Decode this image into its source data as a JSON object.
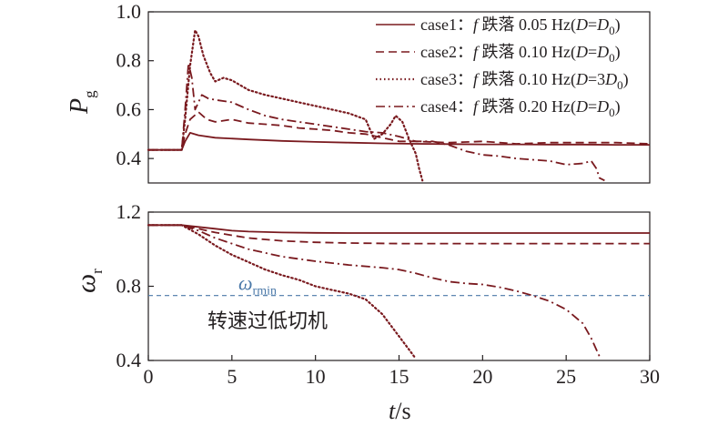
{
  "chart_data": [
    {
      "type": "line",
      "ylabel": "P",
      "ylabel_sub": "g",
      "ylim": [
        0.3,
        1.0
      ],
      "xlim": [
        0,
        30
      ],
      "yticks": [
        "0.4",
        "0.6",
        "0.8",
        "1.0"
      ],
      "legend_position": "top-right",
      "legend": [
        {
          "id": "case1",
          "text_pre": "case1：",
          "f": "f",
          "text_mid": " 跌落 0.05 Hz(",
          "D": "D",
          "eq": "=",
          "D0": "D",
          "D0sub": "0",
          "close": ")"
        },
        {
          "id": "case2",
          "text_pre": "case2：",
          "f": "f",
          "text_mid": " 跌落 0.10 Hz(",
          "D": "D",
          "eq": "=",
          "D0": "D",
          "D0sub": "0",
          "close": ")"
        },
        {
          "id": "case3",
          "text_pre": "case3：",
          "f": "f",
          "text_mid": " 跌落 0.10 Hz(",
          "D": "D",
          "eq": "=3",
          "D0": "D",
          "D0sub": "0",
          "close": ")"
        },
        {
          "id": "case4",
          "text_pre": "case4：",
          "f": "f",
          "text_mid": " 跌落 0.20 Hz(",
          "D": "D",
          "eq": "=",
          "D0": "D",
          "D0sub": "0",
          "close": ")"
        }
      ],
      "series": [
        {
          "id": "case1",
          "style": "solid",
          "color": "#7a1a1f",
          "x": [
            0,
            2,
            2.2,
            2.5,
            3,
            4,
            6,
            8,
            10,
            12,
            14,
            16,
            18,
            20,
            22,
            24,
            26,
            28,
            30
          ],
          "y": [
            0.435,
            0.435,
            0.47,
            0.505,
            0.495,
            0.485,
            0.478,
            0.472,
            0.468,
            0.465,
            0.462,
            0.46,
            0.459,
            0.458,
            0.458,
            0.457,
            0.457,
            0.456,
            0.456
          ]
        },
        {
          "id": "case2",
          "style": "dashed",
          "color": "#7a1a1f",
          "x": [
            0,
            2,
            2.2,
            2.5,
            3,
            3.5,
            4,
            5,
            6,
            7,
            8,
            9,
            10,
            11,
            12,
            13,
            14,
            15,
            16,
            18,
            20,
            22,
            24,
            26,
            28,
            30
          ],
          "y": [
            0.435,
            0.435,
            0.5,
            0.56,
            0.59,
            0.56,
            0.55,
            0.56,
            0.545,
            0.54,
            0.535,
            0.525,
            0.52,
            0.515,
            0.505,
            0.5,
            0.485,
            0.47,
            0.47,
            0.465,
            0.47,
            0.46,
            0.465,
            0.465,
            0.465,
            0.46
          ]
        },
        {
          "id": "case3",
          "style": "dotted",
          "color": "#7a1a1f",
          "x": [
            0,
            2,
            2.2,
            2.5,
            2.8,
            3.0,
            3.3,
            3.7,
            4,
            4.5,
            5,
            5.5,
            6,
            7,
            8,
            9,
            10,
            11,
            12,
            13,
            13.5,
            14,
            14.5,
            14.8,
            15.2,
            15.6,
            16,
            16.2,
            16.4
          ],
          "y": [
            0.435,
            0.435,
            0.56,
            0.78,
            0.925,
            0.9,
            0.82,
            0.75,
            0.715,
            0.73,
            0.72,
            0.7,
            0.68,
            0.66,
            0.645,
            0.63,
            0.615,
            0.6,
            0.585,
            0.56,
            0.48,
            0.5,
            0.54,
            0.575,
            0.55,
            0.48,
            0.42,
            0.36,
            0.31
          ]
        },
        {
          "id": "case4",
          "style": "dashdot",
          "color": "#7a1a1f",
          "x": [
            0,
            2,
            2.2,
            2.4,
            2.6,
            2.8,
            3.2,
            3.6,
            4,
            5,
            6,
            7,
            8,
            9,
            10,
            11,
            12,
            13,
            14,
            15,
            16,
            17,
            18,
            19,
            20,
            21,
            22,
            23,
            24,
            25,
            26,
            26.5,
            26.8,
            27.0,
            27.3
          ],
          "y": [
            0.435,
            0.435,
            0.6,
            0.79,
            0.73,
            0.6,
            0.66,
            0.645,
            0.64,
            0.63,
            0.6,
            0.575,
            0.56,
            0.55,
            0.54,
            0.53,
            0.52,
            0.51,
            0.505,
            0.49,
            0.47,
            0.47,
            0.455,
            0.43,
            0.415,
            0.41,
            0.4,
            0.395,
            0.39,
            0.375,
            0.38,
            0.39,
            0.36,
            0.32,
            0.31
          ]
        }
      ]
    },
    {
      "type": "line",
      "xlabel": "t",
      "xlabel_unit": "/s",
      "ylabel": "ω",
      "ylabel_sub": "r",
      "ylim": [
        0.4,
        1.2
      ],
      "xlim": [
        0,
        30
      ],
      "xticks": [
        "0",
        "5",
        "10",
        "15",
        "20",
        "25",
        "30"
      ],
      "yticks": [
        "0.4",
        "0.8",
        "1.2"
      ],
      "reference_line": {
        "y": 0.75,
        "label": "ω",
        "label_sub": "rmin",
        "color": "#4a78a8",
        "style": "dashed"
      },
      "annotation": "转速过低切机",
      "series": [
        {
          "id": "case1",
          "style": "solid",
          "color": "#7a1a1f",
          "x": [
            0,
            2,
            2.5,
            3,
            4,
            5,
            6,
            8,
            10,
            12,
            15,
            20,
            25,
            30
          ],
          "y": [
            1.13,
            1.13,
            1.125,
            1.12,
            1.11,
            1.1,
            1.095,
            1.09,
            1.088,
            1.087,
            1.087,
            1.087,
            1.087,
            1.087
          ]
        },
        {
          "id": "case2",
          "style": "dashed",
          "color": "#7a1a1f",
          "x": [
            0,
            2,
            2.5,
            3,
            4,
            5,
            6,
            8,
            10,
            12,
            15,
            20,
            25,
            30
          ],
          "y": [
            1.13,
            1.13,
            1.12,
            1.11,
            1.09,
            1.075,
            1.06,
            1.045,
            1.037,
            1.033,
            1.03,
            1.03,
            1.03,
            1.03
          ]
        },
        {
          "id": "case3",
          "style": "dotted",
          "color": "#7a1a1f",
          "x": [
            0,
            2,
            3,
            4,
            5,
            6,
            7,
            8,
            9,
            10,
            11,
            12,
            13,
            14,
            15,
            15.5,
            16
          ],
          "y": [
            1.13,
            1.13,
            1.08,
            1.02,
            0.97,
            0.93,
            0.89,
            0.86,
            0.835,
            0.8,
            0.78,
            0.76,
            0.73,
            0.65,
            0.53,
            0.47,
            0.41
          ]
        },
        {
          "id": "case4",
          "style": "dashdot",
          "color": "#7a1a1f",
          "x": [
            0,
            2,
            3,
            4,
            5,
            6,
            8,
            10,
            12,
            14,
            15,
            16,
            17,
            18,
            19,
            20,
            21,
            22,
            23,
            24,
            25,
            26,
            26.5,
            27
          ],
          "y": [
            1.13,
            1.13,
            1.1,
            1.06,
            1.03,
            1.0,
            0.96,
            0.935,
            0.915,
            0.9,
            0.89,
            0.87,
            0.845,
            0.825,
            0.815,
            0.81,
            0.795,
            0.775,
            0.75,
            0.72,
            0.675,
            0.6,
            0.52,
            0.42
          ]
        }
      ]
    }
  ]
}
